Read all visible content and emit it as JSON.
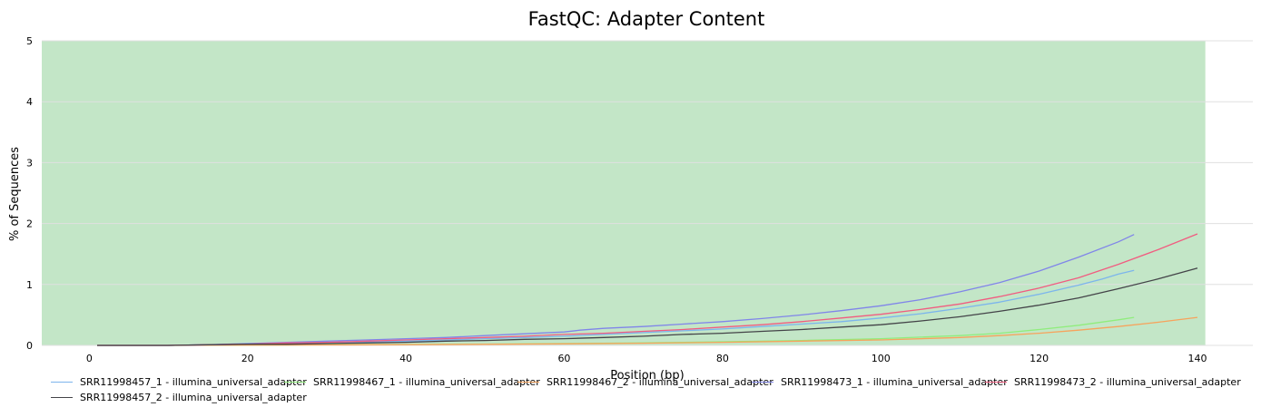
{
  "chart_data": {
    "type": "line",
    "title": "FastQC: Adapter Content",
    "xlabel": "Position (bp)",
    "ylabel": "% of Sequences",
    "xlim": [
      -6,
      147
    ],
    "ylim": [
      0,
      5
    ],
    "xticks": [
      0,
      20,
      40,
      60,
      80,
      100,
      120,
      140
    ],
    "yticks": [
      0,
      1,
      2,
      3,
      4,
      5
    ],
    "grid": true,
    "background_band": {
      "color": "#c3e6c7",
      "from_x": -6,
      "to_x": 141
    },
    "legend_placement": "bottom",
    "series": [
      {
        "name": "SRR11998457_1 - illumina_universal_adapter",
        "color": "#7cb5ec",
        "x": [
          1,
          10,
          15,
          20,
          25,
          30,
          35,
          40,
          45,
          50,
          55,
          60,
          65,
          70,
          75,
          80,
          85,
          90,
          95,
          100,
          105,
          110,
          115,
          120,
          125,
          128,
          130,
          132
        ],
        "y": [
          0,
          0,
          0.01,
          0.02,
          0.03,
          0.05,
          0.06,
          0.07,
          0.09,
          0.11,
          0.13,
          0.15,
          0.18,
          0.21,
          0.24,
          0.27,
          0.31,
          0.35,
          0.39,
          0.45,
          0.52,
          0.61,
          0.71,
          0.84,
          0.99,
          1.09,
          1.17,
          1.23
        ]
      },
      {
        "name": "SRR11998467_1 - illumina_universal_adapter",
        "color": "#90ed7d",
        "x": [
          1,
          10,
          20,
          30,
          40,
          50,
          60,
          70,
          80,
          90,
          100,
          110,
          115,
          120,
          125,
          130,
          132
        ],
        "y": [
          0,
          0,
          0.005,
          0.01,
          0.015,
          0.02,
          0.03,
          0.04,
          0.06,
          0.08,
          0.11,
          0.16,
          0.2,
          0.26,
          0.33,
          0.42,
          0.46
        ]
      },
      {
        "name": "SRR11998467_2 - illumina_universal_adapter",
        "color": "#f7a35c",
        "x": [
          1,
          10,
          20,
          30,
          40,
          50,
          60,
          70,
          80,
          90,
          100,
          110,
          115,
          120,
          125,
          130,
          135,
          140
        ],
        "y": [
          0,
          0,
          0.004,
          0.008,
          0.012,
          0.018,
          0.025,
          0.035,
          0.05,
          0.07,
          0.09,
          0.13,
          0.16,
          0.2,
          0.25,
          0.31,
          0.38,
          0.46
        ]
      },
      {
        "name": "SRR11998473_1 - illumina_universal_adapter",
        "color": "#8085e9",
        "x": [
          1,
          10,
          15,
          20,
          25,
          30,
          35,
          40,
          45,
          50,
          55,
          60,
          62,
          65,
          70,
          75,
          80,
          85,
          90,
          95,
          100,
          105,
          110,
          115,
          120,
          125,
          130,
          132
        ],
        "y": [
          0,
          0,
          0.01,
          0.03,
          0.05,
          0.07,
          0.09,
          0.11,
          0.13,
          0.16,
          0.19,
          0.22,
          0.25,
          0.28,
          0.31,
          0.35,
          0.39,
          0.44,
          0.5,
          0.57,
          0.65,
          0.75,
          0.88,
          1.03,
          1.22,
          1.45,
          1.7,
          1.82
        ]
      },
      {
        "name": "SRR11998473_2 - illumina_universal_adapter",
        "color": "#f15c80",
        "x": [
          1,
          10,
          15,
          20,
          25,
          30,
          35,
          40,
          45,
          50,
          55,
          60,
          65,
          70,
          75,
          80,
          85,
          90,
          95,
          100,
          105,
          110,
          115,
          120,
          125,
          130,
          135,
          140
        ],
        "y": [
          0,
          0,
          0.01,
          0.02,
          0.04,
          0.05,
          0.07,
          0.09,
          0.11,
          0.13,
          0.15,
          0.18,
          0.2,
          0.23,
          0.26,
          0.3,
          0.34,
          0.39,
          0.45,
          0.51,
          0.59,
          0.68,
          0.8,
          0.94,
          1.11,
          1.33,
          1.57,
          1.83
        ]
      },
      {
        "name": "SRR11998457_2 - illumina_universal_adapter",
        "color": "#434348",
        "x": [
          1,
          10,
          15,
          20,
          25,
          30,
          35,
          40,
          45,
          50,
          55,
          60,
          65,
          70,
          75,
          80,
          85,
          90,
          95,
          100,
          105,
          110,
          115,
          120,
          125,
          130,
          135,
          140
        ],
        "y": [
          0,
          0,
          0.01,
          0.02,
          0.02,
          0.03,
          0.04,
          0.05,
          0.07,
          0.08,
          0.1,
          0.11,
          0.13,
          0.15,
          0.18,
          0.2,
          0.23,
          0.26,
          0.3,
          0.34,
          0.4,
          0.47,
          0.56,
          0.66,
          0.78,
          0.93,
          1.09,
          1.27
        ]
      }
    ]
  }
}
